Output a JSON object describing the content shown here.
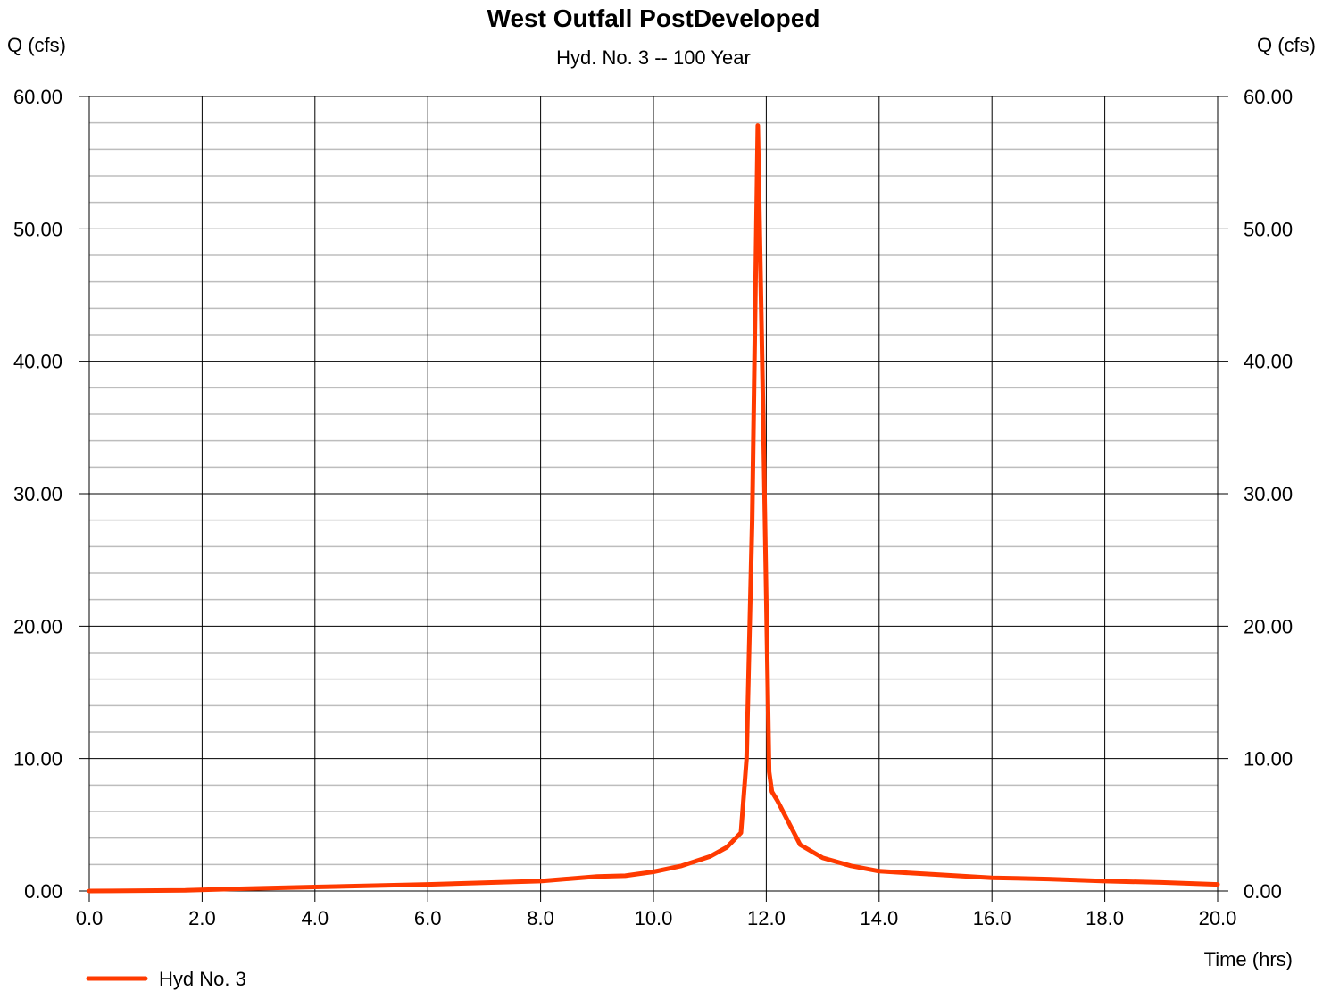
{
  "chart_data": {
    "type": "line",
    "title": "West Outfall PostDeveloped",
    "subtitle": "Hyd. No. 3 -- 100 Year",
    "ylabel_left": "Q (cfs)",
    "ylabel_right": "Q (cfs)",
    "xlabel": "Time (hrs)",
    "xlim": [
      0,
      20
    ],
    "ylim": [
      0,
      60
    ],
    "x_ticks": [
      "0.0",
      "2.0",
      "4.0",
      "6.0",
      "8.0",
      "10.0",
      "12.0",
      "14.0",
      "16.0",
      "18.0",
      "20.0"
    ],
    "y_ticks": [
      "0.00",
      "10.00",
      "20.00",
      "30.00",
      "40.00",
      "50.00",
      "60.00"
    ],
    "grid": true,
    "legend_position": "bottom-left",
    "series": [
      {
        "name": "Hyd No. 3",
        "color": "#ff3a00",
        "x": [
          0.0,
          1.7,
          2.5,
          4.0,
          6.0,
          8.0,
          9.0,
          9.5,
          10.0,
          10.5,
          11.0,
          11.3,
          11.55,
          11.65,
          11.75,
          11.85,
          11.95,
          12.05,
          12.1,
          12.2,
          12.6,
          13.0,
          13.5,
          14.0,
          15.0,
          16.0,
          17.0,
          18.0,
          19.0,
          20.0
        ],
        "y": [
          0.0,
          0.05,
          0.15,
          0.3,
          0.5,
          0.75,
          1.1,
          1.15,
          1.45,
          1.9,
          2.6,
          3.3,
          4.4,
          10.0,
          28.0,
          57.8,
          35.0,
          9.0,
          7.5,
          6.8,
          3.5,
          2.5,
          1.9,
          1.5,
          1.25,
          1.0,
          0.9,
          0.75,
          0.65,
          0.5
        ]
      }
    ]
  }
}
